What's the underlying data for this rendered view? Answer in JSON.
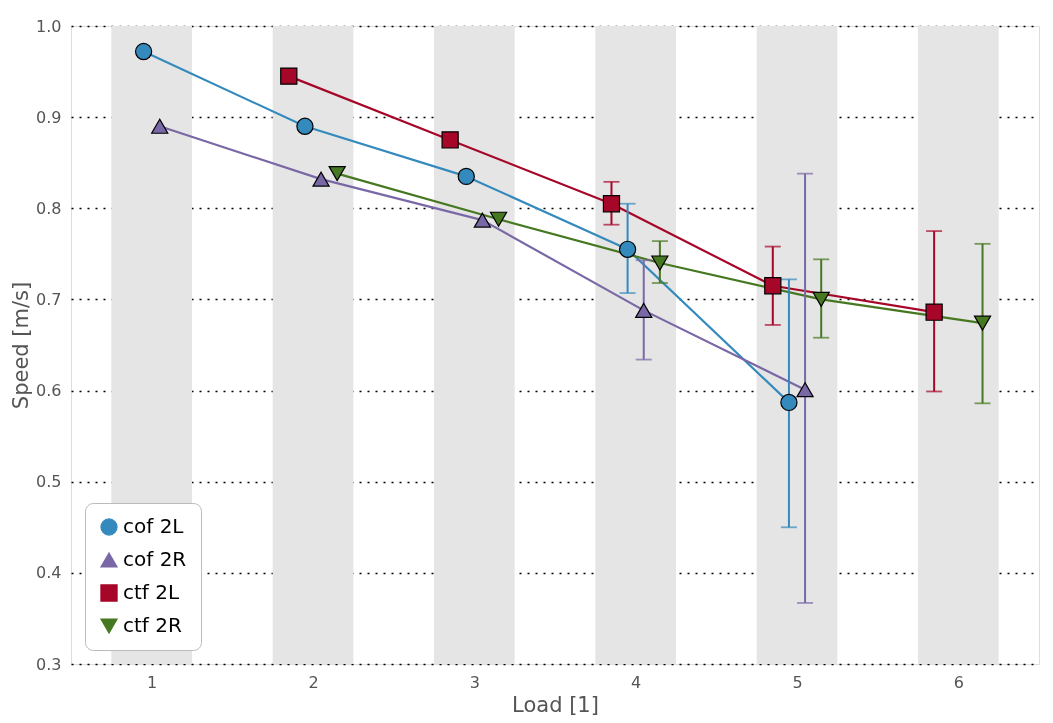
{
  "chart_data": {
    "type": "line",
    "xlabel": "Load [1]",
    "ylabel": "Speed [m/s]",
    "xlim": [
      0.5,
      6.5
    ],
    "xticks": [
      1,
      2,
      3,
      4,
      5,
      6
    ],
    "ylim": [
      0.3,
      1.0
    ],
    "yticks": [
      0.3,
      0.4,
      0.5,
      0.6,
      0.7,
      0.8,
      0.9,
      {
        "value": 1.0,
        "label": "1.0"
      }
    ],
    "grid": "y",
    "legend": "bottom left",
    "line_style": "solid",
    "bands": [
      {
        "axis": "x",
        "from": 0.75,
        "to": 1.25,
        "color": "#e5e5e5"
      },
      {
        "axis": "x",
        "from": 1.75,
        "to": 2.25,
        "color": "#e5e5e5"
      },
      {
        "axis": "x",
        "from": 2.75,
        "to": 3.25,
        "color": "#e5e5e5"
      },
      {
        "axis": "x",
        "from": 3.75,
        "to": 4.25,
        "color": "#e5e5e5"
      },
      {
        "axis": "x",
        "from": 4.75,
        "to": 5.25,
        "color": "#e5e5e5"
      },
      {
        "axis": "x",
        "from": 5.75,
        "to": 6.25,
        "color": "#e5e5e5"
      }
    ],
    "series": [
      {
        "name": "cof 2L",
        "color": "#348abd",
        "marker": "circle",
        "x": [
          0.95,
          1.95,
          2.95,
          3.95,
          4.95
        ],
        "values": [
          0.972,
          0.89,
          0.835,
          0.755,
          0.587
        ],
        "errors": [
          null,
          null,
          null,
          [
            0.707,
            0.805
          ],
          [
            0.45,
            0.722
          ]
        ]
      },
      {
        "name": "cof 2R",
        "color": "#7a68a6",
        "marker": "triangle",
        "x": [
          1.05,
          2.05,
          3.05,
          4.05,
          5.05
        ],
        "values": [
          0.89,
          0.832,
          0.787,
          0.688,
          0.601
        ],
        "errors": [
          null,
          null,
          null,
          [
            0.634,
            0.743
          ],
          [
            0.367,
            0.838
          ]
        ]
      },
      {
        "name": "ctf 2L",
        "color": "#a60628",
        "marker": "square",
        "x": [
          1.85,
          2.85,
          3.85,
          4.85,
          5.85
        ],
        "values": [
          0.945,
          0.875,
          0.805,
          0.715,
          0.686
        ],
        "errors": [
          null,
          null,
          [
            0.782,
            0.829
          ],
          [
            0.672,
            0.758
          ],
          [
            0.599,
            0.775
          ]
        ]
      },
      {
        "name": "ctf 2R",
        "color": "#467821",
        "marker": "triangle-down",
        "x": [
          2.15,
          3.15,
          4.15,
          5.15,
          6.15
        ],
        "values": [
          0.838,
          0.788,
          0.74,
          0.7,
          0.674
        ],
        "errors": [
          null,
          null,
          [
            0.718,
            0.764
          ],
          [
            0.658,
            0.744
          ],
          [
            0.586,
            0.761
          ]
        ]
      }
    ]
  }
}
